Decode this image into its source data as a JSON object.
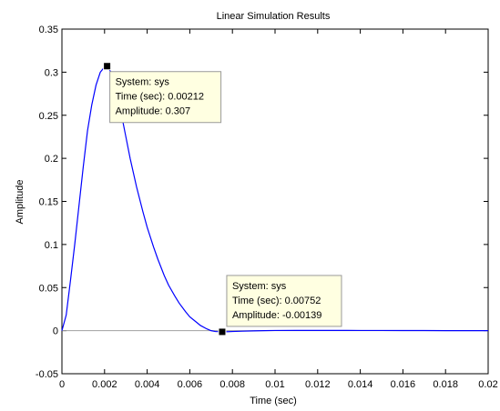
{
  "chart_data": {
    "type": "line",
    "title": "Linear Simulation Results",
    "xlabel": "Time (sec)",
    "ylabel": "Amplitude",
    "xlim": [
      0,
      0.02
    ],
    "ylim": [
      -0.05,
      0.35
    ],
    "xticks": [
      0,
      0.002,
      0.004,
      0.006,
      0.008,
      0.01,
      0.012,
      0.014,
      0.016,
      0.018,
      0.02
    ],
    "xtick_labels": [
      "0",
      "0.002",
      "0.004",
      "0.006",
      "0.008",
      "0.01",
      "0.012",
      "0.014",
      "0.016",
      "0.018",
      "0.02"
    ],
    "yticks": [
      -0.05,
      0,
      0.05,
      0.1,
      0.15,
      0.2,
      0.25,
      0.3,
      0.35
    ],
    "ytick_labels": [
      "-0.05",
      "0",
      "0.05",
      "0.1",
      "0.15",
      "0.2",
      "0.25",
      "0.3",
      "0.35"
    ],
    "grid": false,
    "zero_line": true,
    "line_color": "#0000ff",
    "series": [
      {
        "x": [
          0,
          0.0002,
          0.0004,
          0.0006,
          0.0008,
          0.001,
          0.0012,
          0.0014,
          0.0016,
          0.0018,
          0.002,
          0.00212,
          0.0023,
          0.0025,
          0.0028,
          0.003,
          0.0032,
          0.0035,
          0.0038,
          0.004,
          0.0043,
          0.0045,
          0.0048,
          0.005,
          0.0053,
          0.0055,
          0.0058,
          0.006,
          0.0063,
          0.0065,
          0.0068,
          0.007,
          0.0072,
          0.00752,
          0.0078,
          0.008,
          0.0085,
          0.009,
          0.0095,
          0.01,
          0.011,
          0.012,
          0.013,
          0.014,
          0.015,
          0.016,
          0.017,
          0.018,
          0.019,
          0.02
        ],
        "y": [
          0,
          0.018,
          0.058,
          0.1,
          0.145,
          0.19,
          0.232,
          0.262,
          0.285,
          0.3,
          0.306,
          0.307,
          0.3,
          0.282,
          0.25,
          0.225,
          0.2,
          0.167,
          0.138,
          0.12,
          0.097,
          0.083,
          0.064,
          0.053,
          0.04,
          0.032,
          0.022,
          0.016,
          0.01,
          0.006,
          0.002,
          0.0,
          -0.001,
          -0.00139,
          -0.0012,
          -0.001,
          -0.0006,
          -0.0003,
          0.0,
          0.0002,
          0.0003,
          0.0003,
          0.0003,
          0.0002,
          0.0002,
          0.0001,
          0.0001,
          0.0,
          0.0,
          0.0
        ]
      }
    ],
    "datatips": [
      {
        "x": 0.00212,
        "y": 0.307,
        "lines": [
          "System: sys",
          "Time (sec): 0.00212",
          "Amplitude: 0.307"
        ]
      },
      {
        "x": 0.00752,
        "y": -0.00139,
        "lines": [
          "System: sys",
          "Time (sec): 0.00752",
          "Amplitude: -0.00139"
        ]
      }
    ]
  }
}
